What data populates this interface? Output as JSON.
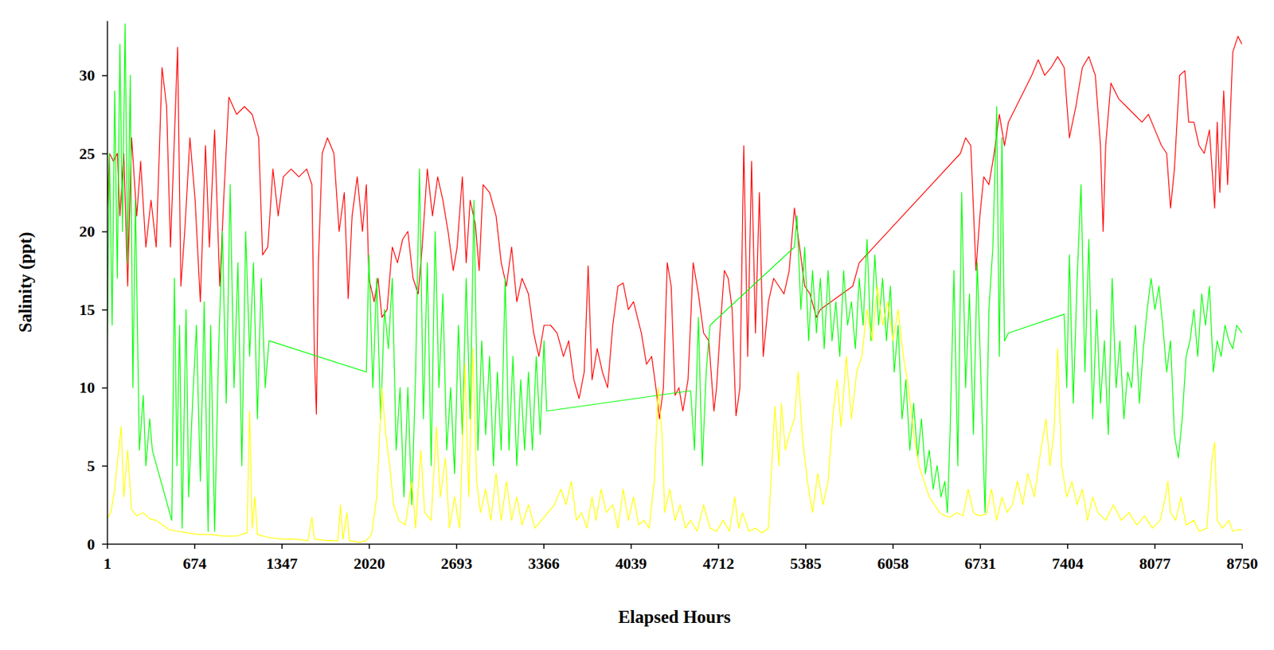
{
  "chart_data": {
    "type": "line",
    "x_label": "Elapsed Hours",
    "y_label": "Salinity (ppt)",
    "xlim": [
      1,
      8750
    ],
    "xticks": [
      1,
      674,
      1347,
      2020,
      2693,
      3366,
      4039,
      4712,
      5385,
      6058,
      6731,
      7404,
      8077,
      8750
    ],
    "ylim": [
      0,
      33.5
    ],
    "yticks": [
      0,
      5,
      10,
      15,
      20,
      25,
      30
    ],
    "grid": false,
    "series": [
      {
        "color": "#ff0000",
        "x": [
          1,
          20,
          50,
          80,
          100,
          130,
          160,
          190,
          230,
          260,
          300,
          340,
          380,
          425,
          460,
          490,
          520,
          545,
          570,
          600,
          640,
          680,
          720,
          760,
          790,
          830,
          870,
          900,
          940,
          1000,
          1060,
          1120,
          1170,
          1200,
          1240,
          1280,
          1320,
          1360,
          1420,
          1480,
          1540,
          1580,
          1600,
          1615,
          1630,
          1660,
          1700,
          1750,
          1790,
          1830,
          1860,
          1890,
          1930,
          1970,
          2000,
          2020,
          2060,
          2090,
          2120,
          2160,
          2200,
          2240,
          2280,
          2320,
          2360,
          2400,
          2430,
          2470,
          2510,
          2550,
          2590,
          2630,
          2670,
          2700,
          2740,
          2770,
          2800,
          2840,
          2870,
          2900,
          2950,
          3000,
          3040,
          3080,
          3120,
          3160,
          3200,
          3250,
          3290,
          3330,
          3370,
          3420,
          3470,
          3520,
          3560,
          3600,
          3640,
          3680,
          3710,
          3740,
          3780,
          3820,
          3860,
          3900,
          3940,
          3980,
          4020,
          4060,
          4090,
          4120,
          4160,
          4200,
          4240,
          4260,
          4290,
          4320,
          4350,
          4380,
          4410,
          4440,
          4480,
          4520,
          4560,
          4600,
          4640,
          4680,
          4700,
          4730,
          4760,
          4790,
          4820,
          4850,
          4880,
          4910,
          4940,
          4970,
          5000,
          5030,
          5060,
          5100,
          5140,
          5180,
          5220,
          5260,
          5300,
          5340,
          5380,
          5420,
          5470,
          5500,
          5750,
          5800,
          6580,
          6620,
          6660,
          6700,
          6730,
          6760,
          6800,
          6840,
          6880,
          6920,
          6950,
          7130,
          7180,
          7230,
          7280,
          7330,
          7380,
          7420,
          7470,
          7520,
          7570,
          7620,
          7660,
          7680,
          7700,
          7740,
          7800,
          7860,
          7920,
          7980,
          8030,
          8080,
          8130,
          8170,
          8200,
          8230,
          8270,
          8310,
          8340,
          8380,
          8420,
          8460,
          8500,
          8540,
          8560,
          8580,
          8610,
          8640,
          8680,
          8720,
          8750
        ],
        "values": [
          21,
          25,
          24.5,
          25,
          21,
          25,
          16.5,
          26,
          21,
          24.5,
          19,
          22,
          19,
          30.5,
          28,
          19,
          26,
          31.8,
          16.5,
          20,
          26,
          22,
          15.5,
          25.5,
          19,
          26.5,
          16.5,
          22,
          28.6,
          27.5,
          28,
          27.5,
          26,
          18.5,
          19,
          24,
          21,
          23.5,
          24,
          23.5,
          24,
          23,
          12,
          8.3,
          18,
          25,
          26,
          25,
          20,
          22.5,
          15.7,
          21,
          23.5,
          20,
          23,
          17,
          15.5,
          17,
          14.5,
          15,
          19,
          18,
          19.5,
          20,
          17,
          16,
          19,
          24,
          21,
          23.5,
          22,
          20,
          17.5,
          19,
          23.5,
          18,
          22,
          20.5,
          17.5,
          23,
          22.5,
          21,
          18,
          16.5,
          19,
          15.5,
          17,
          16,
          13.5,
          12,
          14,
          14,
          13.5,
          12,
          13,
          10.5,
          9.3,
          11,
          17.8,
          10.5,
          12.5,
          11,
          10,
          14,
          16.5,
          16.7,
          15,
          15.5,
          14.5,
          13.5,
          11.5,
          12,
          9.5,
          8,
          10,
          18,
          16.5,
          9.5,
          10,
          8.5,
          10.5,
          18,
          16,
          13.5,
          13,
          8.5,
          10,
          14,
          17.5,
          17,
          15,
          8.2,
          10,
          25.5,
          12,
          24.5,
          13.5,
          22.5,
          12,
          15.5,
          17,
          16.5,
          16,
          17.5,
          21.5,
          19,
          16.5,
          16,
          14.5,
          15,
          16.5,
          18,
          25,
          26,
          25.5,
          17.5,
          21,
          23.5,
          23,
          25,
          27.5,
          25.5,
          27,
          30,
          31,
          30,
          30.5,
          31.2,
          30.5,
          26,
          28,
          30.5,
          31.2,
          30,
          25.5,
          20,
          25.5,
          29.5,
          28.5,
          28,
          27.5,
          27,
          27.5,
          26.5,
          25.5,
          25,
          21.5,
          24,
          30,
          30.3,
          27,
          27,
          25.5,
          25,
          26.5,
          21.5,
          27,
          22.5,
          29,
          23,
          31.5,
          32.5,
          32
        ]
      },
      {
        "color": "#00ff00",
        "x": [
          1,
          20,
          40,
          60,
          80,
          100,
          120,
          140,
          160,
          180,
          200,
          220,
          250,
          280,
          300,
          330,
          350,
          500,
          520,
          540,
          560,
          580,
          610,
          630,
          660,
          690,
          720,
          750,
          780,
          800,
          830,
          860,
          890,
          920,
          950,
          980,
          1010,
          1040,
          1070,
          1100,
          1130,
          1160,
          1190,
          1220,
          1250,
          2000,
          2020,
          2050,
          2080,
          2110,
          2140,
          2170,
          2200,
          2230,
          2260,
          2290,
          2320,
          2350,
          2380,
          2410,
          2440,
          2470,
          2500,
          2530,
          2560,
          2590,
          2620,
          2650,
          2680,
          2710,
          2740,
          2770,
          2800,
          2830,
          2860,
          2890,
          2920,
          2950,
          2980,
          3010,
          3040,
          3070,
          3100,
          3130,
          3160,
          3190,
          3220,
          3250,
          3280,
          3310,
          3340,
          3370,
          3390,
          4500,
          4530,
          4560,
          4590,
          4620,
          4650,
          5300,
          5320,
          5350,
          5380,
          5410,
          5440,
          5470,
          5500,
          5530,
          5560,
          5590,
          5620,
          5650,
          5680,
          5710,
          5740,
          5770,
          5800,
          5830,
          5860,
          5890,
          5920,
          5950,
          5980,
          6010,
          6040,
          6070,
          6100,
          6130,
          6160,
          6190,
          6220,
          6250,
          6280,
          6310,
          6340,
          6370,
          6400,
          6430,
          6460,
          6480,
          6500,
          6530,
          6560,
          6590,
          6620,
          6650,
          6680,
          6710,
          6740,
          6770,
          6800,
          6830,
          6860,
          6880,
          6900,
          6920,
          6950,
          7380,
          7400,
          7420,
          7450,
          7480,
          7510,
          7540,
          7570,
          7600,
          7630,
          7660,
          7690,
          7720,
          7750,
          7780,
          7810,
          7840,
          7870,
          7900,
          7930,
          7960,
          7990,
          8020,
          8050,
          8080,
          8110,
          8140,
          8170,
          8200,
          8230,
          8260,
          8290,
          8320,
          8350,
          8380,
          8410,
          8440,
          8470,
          8500,
          8530,
          8560,
          8590,
          8620,
          8650,
          8680,
          8710,
          8750
        ],
        "values": [
          11,
          25,
          14,
          29,
          17,
          32,
          20,
          33.3,
          18,
          30,
          10,
          22,
          6,
          9.5,
          5,
          8,
          6,
          1.5,
          17,
          5,
          14,
          1,
          15,
          3,
          9,
          14,
          4,
          15.5,
          0.8,
          14,
          0.8,
          12,
          20,
          9,
          23,
          10,
          18,
          5,
          20,
          12,
          18,
          8,
          17,
          10,
          13,
          11,
          18.5,
          10,
          17,
          8,
          15,
          12.5,
          17,
          6,
          10,
          3,
          10,
          2.5,
          11,
          24,
          8,
          18,
          5,
          20,
          10,
          16,
          6,
          10,
          4.5,
          14,
          7,
          17,
          8,
          22,
          6,
          13,
          7,
          12,
          5,
          11,
          6,
          17,
          6,
          12,
          5,
          10.5,
          6,
          11,
          6,
          12,
          7,
          13,
          8.5,
          9.8,
          6,
          14.5,
          5,
          11,
          14,
          19,
          21,
          15,
          19,
          13,
          17.5,
          13.5,
          17,
          12.5,
          17.5,
          13,
          15.5,
          12,
          17.5,
          14,
          15.5,
          12.5,
          17,
          14,
          19.5,
          13,
          18.5,
          14,
          17,
          13,
          16.5,
          11,
          14,
          8,
          10.5,
          6,
          9,
          5.5,
          8,
          4.5,
          6,
          3.5,
          5,
          3,
          4,
          2,
          7,
          17.5,
          5,
          22.5,
          10,
          16,
          7,
          18,
          10,
          2,
          15,
          19,
          28,
          12,
          26,
          13,
          13.5,
          14.7,
          10,
          18.5,
          9,
          17,
          23,
          11,
          19.5,
          8,
          15,
          9,
          13,
          7,
          17,
          10,
          13,
          8,
          11,
          10,
          14,
          9,
          12.5,
          15,
          17,
          15,
          16.5,
          14,
          11,
          13,
          7,
          5.5,
          8,
          12,
          13,
          15,
          12,
          16,
          14,
          16.5,
          11,
          13,
          12,
          14,
          13,
          12.5,
          14,
          13.5
        ]
      },
      {
        "color": "#ffff00",
        "x": [
          1,
          30,
          60,
          90,
          110,
          130,
          160,
          190,
          230,
          280,
          330,
          380,
          430,
          480,
          550,
          620,
          700,
          800,
          900,
          1000,
          1080,
          1100,
          1120,
          1140,
          1160,
          1250,
          1350,
          1450,
          1550,
          1580,
          1600,
          1700,
          1780,
          1800,
          1820,
          1850,
          1870,
          1950,
          2000,
          2040,
          2080,
          2120,
          2150,
          2180,
          2210,
          2250,
          2300,
          2350,
          2380,
          2420,
          2450,
          2500,
          2540,
          2570,
          2610,
          2640,
          2680,
          2720,
          2760,
          2790,
          2820,
          2850,
          2880,
          2920,
          2960,
          3000,
          3040,
          3080,
          3120,
          3160,
          3200,
          3250,
          3300,
          3350,
          3400,
          3450,
          3500,
          3540,
          3580,
          3620,
          3660,
          3700,
          3740,
          3770,
          3810,
          3850,
          3900,
          3940,
          3980,
          4020,
          4060,
          4100,
          4140,
          4180,
          4220,
          4250,
          4280,
          4300,
          4340,
          4380,
          4420,
          4460,
          4500,
          4550,
          4600,
          4650,
          4700,
          4750,
          4800,
          4840,
          4870,
          4900,
          4950,
          5000,
          5050,
          5100,
          5150,
          5180,
          5200,
          5230,
          5260,
          5300,
          5330,
          5360,
          5400,
          5440,
          5480,
          5520,
          5560,
          5600,
          5630,
          5660,
          5700,
          5740,
          5780,
          5820,
          5860,
          5900,
          5940,
          5980,
          6020,
          6060,
          6100,
          6140,
          6180,
          6220,
          6260,
          6300,
          6340,
          6380,
          6420,
          6460,
          6500,
          6550,
          6600,
          6640,
          6680,
          6720,
          6780,
          6820,
          6860,
          6900,
          6940,
          6980,
          7020,
          7060,
          7100,
          7150,
          7200,
          7240,
          7270,
          7300,
          7330,
          7360,
          7400,
          7440,
          7480,
          7520,
          7560,
          7600,
          7640,
          7700,
          7760,
          7820,
          7880,
          7940,
          8000,
          8060,
          8120,
          8160,
          8180,
          8200,
          8240,
          8280,
          8320,
          8380,
          8420,
          8480,
          8520,
          8540,
          8560,
          8600,
          8650,
          8680,
          8720,
          8750
        ],
        "values": [
          1.6,
          2,
          3.5,
          6,
          7.5,
          3,
          6,
          2.2,
          1.8,
          2,
          1.6,
          1.5,
          1.2,
          0.9,
          0.8,
          0.7,
          0.6,
          0.6,
          0.5,
          0.5,
          0.7,
          8.5,
          1,
          3,
          0.6,
          0.4,
          0.3,
          0.3,
          0.2,
          1.7,
          0.3,
          0.2,
          0.2,
          2.5,
          0.3,
          2,
          0.2,
          0.1,
          0.2,
          0.6,
          3,
          10,
          7,
          5,
          2.5,
          1.5,
          1.2,
          4,
          1,
          6,
          2,
          1.5,
          7.5,
          3,
          5.5,
          1,
          3,
          1,
          11.5,
          3,
          12.5,
          4,
          2,
          3.5,
          1.5,
          4.5,
          1.5,
          4,
          1.5,
          3,
          1.2,
          2.5,
          1,
          1.5,
          2,
          2.5,
          3.5,
          2.5,
          4,
          1.5,
          2,
          1,
          3,
          1.5,
          3.5,
          2,
          2.5,
          1,
          3.5,
          1.5,
          3,
          1.2,
          1.5,
          1,
          4,
          10,
          7,
          2,
          3.5,
          1.5,
          2.5,
          1,
          1.5,
          0.8,
          2.5,
          1,
          0.8,
          1.5,
          0.8,
          3,
          1,
          2,
          0.8,
          1,
          0.7,
          1,
          8.8,
          5,
          9,
          6,
          7,
          8,
          11,
          7,
          4,
          2,
          4.5,
          2.5,
          4,
          8.5,
          10.5,
          7.5,
          12,
          8,
          11,
          12,
          15,
          13,
          16.5,
          14,
          15.5,
          13,
          15,
          12,
          10,
          7,
          5,
          4,
          3,
          2.5,
          2,
          1.8,
          1.7,
          2,
          1.8,
          3.5,
          2,
          1.8,
          1.9,
          3.5,
          1.5,
          3,
          2,
          2.5,
          4,
          2.5,
          4.5,
          3,
          6,
          8,
          5,
          7,
          12.5,
          5,
          3,
          4,
          2.5,
          3.5,
          1.5,
          3,
          2,
          1.5,
          2.5,
          1.5,
          2,
          1.2,
          1.8,
          1,
          1.5,
          3,
          4,
          2,
          1.5,
          3,
          1.2,
          1.5,
          0.8,
          1,
          5.5,
          6.5,
          1.5,
          1,
          1.5,
          0.8,
          0.9,
          0.9
        ]
      }
    ]
  }
}
